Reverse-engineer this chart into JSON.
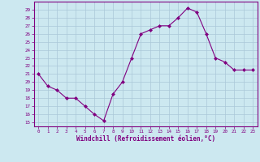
{
  "x": [
    0,
    1,
    2,
    3,
    4,
    5,
    6,
    7,
    8,
    9,
    10,
    11,
    12,
    13,
    14,
    15,
    16,
    17,
    18,
    19,
    20,
    21,
    22,
    23
  ],
  "y": [
    21,
    19.5,
    19,
    18,
    18,
    17,
    16,
    15.2,
    18.5,
    20,
    23,
    26,
    26.5,
    27,
    27,
    28,
    29.2,
    28.7,
    26,
    23,
    22.5,
    21.5,
    21.5,
    21.5
  ],
  "line_color": "#800080",
  "marker": "D",
  "marker_size": 2.0,
  "bg_color": "#cce8f0",
  "grid_color": "#aac8d8",
  "xlabel": "Windchill (Refroidissement éolien,°C)",
  "xlabel_color": "#800080",
  "ylabel_ticks": [
    15,
    16,
    17,
    18,
    19,
    20,
    21,
    22,
    23,
    24,
    25,
    26,
    27,
    28,
    29
  ],
  "xticks": [
    0,
    1,
    2,
    3,
    4,
    5,
    6,
    7,
    8,
    9,
    10,
    11,
    12,
    13,
    14,
    15,
    16,
    17,
    18,
    19,
    20,
    21,
    22,
    23
  ],
  "ylim": [
    14.5,
    30.0
  ],
  "xlim": [
    -0.5,
    23.5
  ],
  "tick_color": "#800080",
  "spine_color": "#800080",
  "tick_fontsize": 4.2,
  "xlabel_fontsize": 5.5
}
